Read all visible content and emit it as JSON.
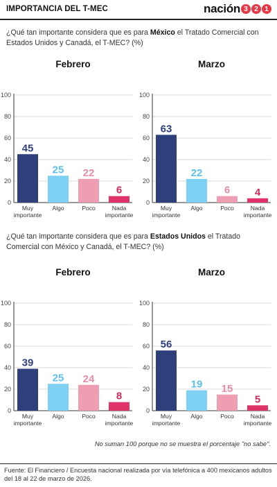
{
  "header": {
    "title": "IMPORTANCIA DEL T-MEC",
    "logo_word": "nación",
    "logo_digits": [
      "3",
      "2",
      "1"
    ]
  },
  "questions": [
    {
      "before": "¿Qué tan importante considera que es para ",
      "bold": "México",
      "after": " el Tratado Comercial con Estados Unidos y Canadá, el T-MEC?  (%)"
    },
    {
      "before": "¿Qué tan importante considera que es para ",
      "bold": "Estados Unidos",
      "after": " el Tratado Comercial con México y Canadá, el T-MEC? (%)"
    }
  ],
  "note": "No suman 100 porque no se muestra el porcentaje \"no sabe\".",
  "source": "Fuente: El Financiero / Encuesta nacional realizada por vía telefónica a 400 mexicanos adultos del 18 al 22 de marzo de 2026.",
  "chart_data": [
    {
      "type": "bar",
      "title": "Febrero",
      "categories": [
        [
          "Muy",
          "importante"
        ],
        [
          "Algo"
        ],
        [
          "Poco"
        ],
        [
          "Nada",
          "importante"
        ]
      ],
      "values": [
        45,
        25,
        22,
        6
      ],
      "ylim": [
        0,
        100
      ],
      "yticks": [
        0,
        20,
        40,
        60,
        80,
        100
      ]
    },
    {
      "type": "bar",
      "title": "Marzo",
      "categories": [
        [
          "Muy",
          "importante"
        ],
        [
          "Algo"
        ],
        [
          "Poco"
        ],
        [
          "Nada",
          "importante"
        ]
      ],
      "values": [
        63,
        22,
        6,
        4
      ],
      "ylim": [
        0,
        100
      ],
      "yticks": [
        0,
        20,
        40,
        60,
        80,
        100
      ]
    },
    {
      "type": "bar",
      "title": "Febrero",
      "categories": [
        [
          "Muy",
          "importante"
        ],
        [
          "Algo"
        ],
        [
          "Poco"
        ],
        [
          "Nada",
          "importante"
        ]
      ],
      "values": [
        39,
        25,
        24,
        8
      ],
      "ylim": [
        0,
        100
      ],
      "yticks": [
        0,
        20,
        40,
        60,
        80,
        100
      ]
    },
    {
      "type": "bar",
      "title": "Marzo",
      "categories": [
        [
          "Muy",
          "importante"
        ],
        [
          "Algo"
        ],
        [
          "Poco"
        ],
        [
          "Nada",
          "importante"
        ]
      ],
      "values": [
        56,
        19,
        15,
        5
      ],
      "ylim": [
        0,
        100
      ],
      "yticks": [
        0,
        20,
        40,
        60,
        80,
        100
      ]
    }
  ],
  "colors": {
    "bars": [
      "#2e3f7c",
      "#7fd0f5",
      "#ee9db3",
      "#e0336a"
    ],
    "labels": [
      "#2e3f7c",
      "#5bbfef",
      "#e98ba6",
      "#d62a5e"
    ],
    "axis": "#333333",
    "grid": "#cccccc"
  }
}
